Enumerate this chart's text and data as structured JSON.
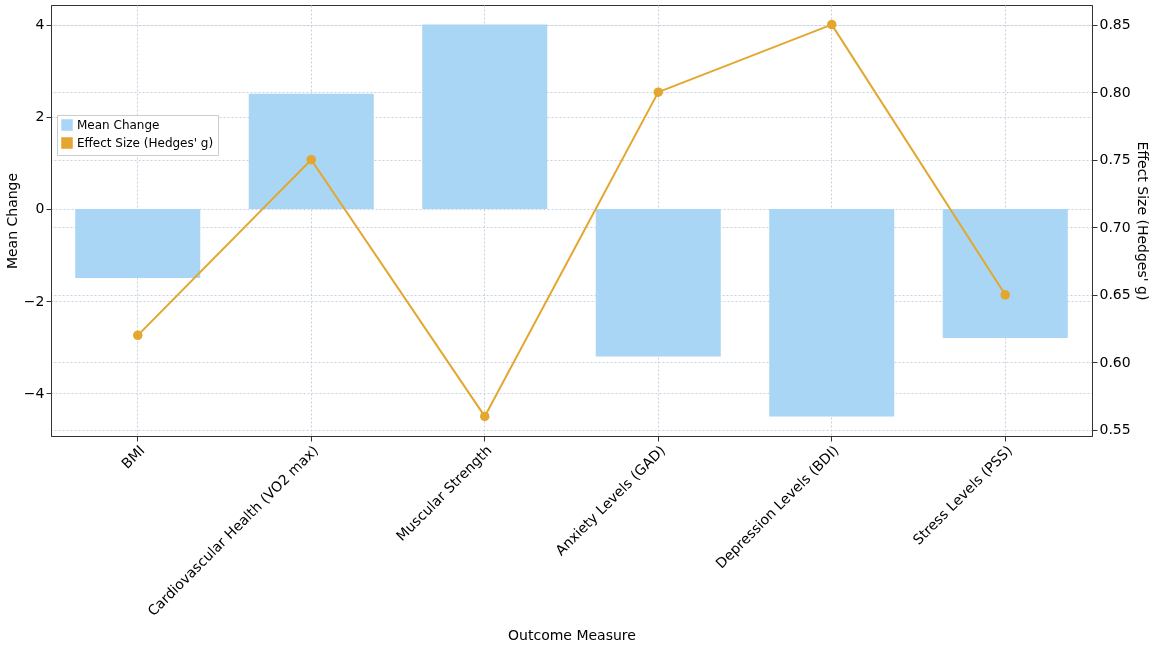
{
  "chart_data": {
    "type": "bar",
    "xlabel": "Outcome Measure",
    "ylabel": "Mean Change",
    "y2label": "Effect Size (Hedges' g)",
    "categories": [
      "BMI",
      "Cardiovascular Health (VO2 max)",
      "Muscular Strength",
      "Anxiety Levels (GAD)",
      "Depression Levels (BDI)",
      "Stress Levels (PSS)"
    ],
    "series": [
      {
        "name": "Mean Change",
        "color": "#a9d6f5",
        "values": [
          -1.5,
          2.5,
          4.0,
          -3.2,
          -4.5,
          -2.8
        ]
      },
      {
        "name": "Effect Size (Hedges' g)",
        "type": "line",
        "axis": "y2",
        "color": "#e3a72f",
        "values": [
          0.62,
          0.75,
          0.56,
          0.8,
          0.85,
          0.65
        ]
      }
    ],
    "ylim": [
      -4.925,
      4.425
    ],
    "yticks": [
      -4,
      -2,
      0,
      2,
      4
    ],
    "y2lim": [
      0.5455,
      0.8645
    ],
    "y2ticks": [
      0.55,
      {
        "value": 0.6,
        "label": "0.60"
      },
      0.65,
      {
        "value": 0.7,
        "label": "0.70"
      },
      0.75,
      {
        "value": 0.8,
        "label": "0.80"
      },
      0.85
    ],
    "grid": true,
    "legend": "top left",
    "marker": "circle"
  }
}
